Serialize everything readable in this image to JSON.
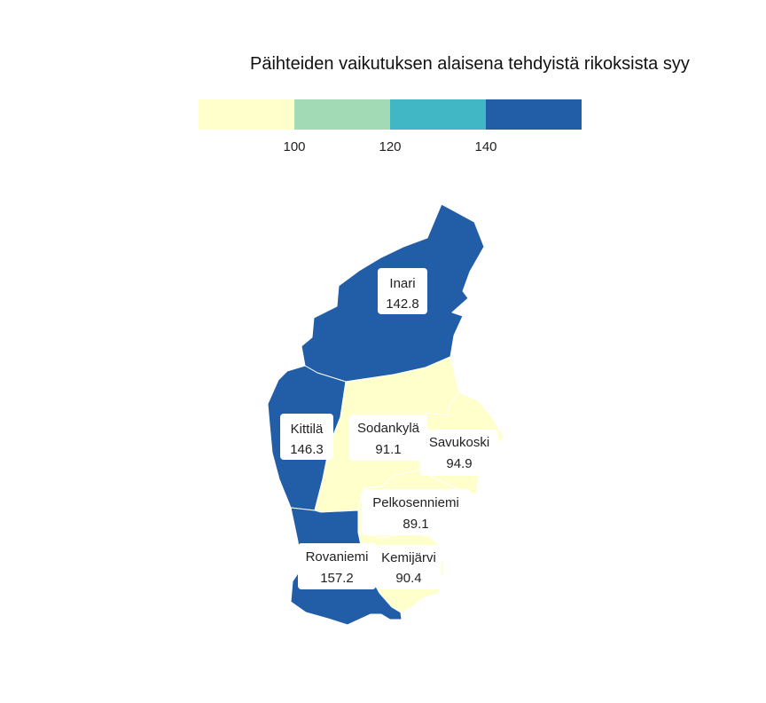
{
  "title": "Päihteiden vaikutuksen alaisena tehdyistä rikoksista syy",
  "legend": {
    "bins": [
      {
        "color": "#ffffcc"
      },
      {
        "color": "#a1dab4"
      },
      {
        "color": "#41b6c4"
      },
      {
        "color": "#225ea8"
      }
    ],
    "breaks": [
      "100",
      "120",
      "140"
    ]
  },
  "regions": [
    {
      "id": "inari",
      "name": "Inari",
      "value": "142.8",
      "color": "#225ea8"
    },
    {
      "id": "kittila",
      "name": "Kittilä",
      "value": "146.3",
      "color": "#225ea8"
    },
    {
      "id": "sodankyla",
      "name": "Sodankylä",
      "value": "91.1",
      "color": "#ffffcc"
    },
    {
      "id": "savukoski",
      "name": "Savukoski",
      "value": "94.9",
      "color": "#ffffcc"
    },
    {
      "id": "pelkosenniemi",
      "name": "Pelkosenniemi",
      "value": "89.1",
      "color": "#ffffcc"
    },
    {
      "id": "rovaniemi",
      "name": "Rovaniemi",
      "value": "157.2",
      "color": "#225ea8"
    },
    {
      "id": "kemijarvi",
      "name": "Kemijärvi",
      "value": "90.4",
      "color": "#ffffcc"
    }
  ]
}
